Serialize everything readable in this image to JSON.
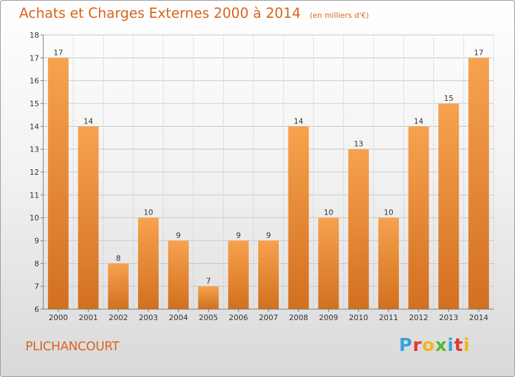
{
  "title": "Achats et Charges Externes 2000 à 2014",
  "subtitle": "(en milliers d'€)",
  "commune": "PLICHANCOURT",
  "brand": {
    "letters": [
      "P",
      "r",
      "o",
      "x",
      "i",
      "t",
      "i"
    ],
    "colors": [
      "#3aa0d8",
      "#e23a2c",
      "#f2b51c",
      "#5bb530",
      "#3aa0d8",
      "#e23a2c",
      "#f2b51c"
    ]
  },
  "colors": {
    "bar_top": "#f7a24e",
    "bar_bottom": "#d2701f",
    "title": "#d9641c",
    "grid": "#c8c8c8"
  },
  "chart_data": {
    "type": "bar",
    "categories": [
      "2000",
      "2001",
      "2002",
      "2003",
      "2004",
      "2005",
      "2006",
      "2007",
      "2008",
      "2009",
      "2010",
      "2011",
      "2012",
      "2013",
      "2014"
    ],
    "values": [
      17,
      14,
      8,
      10,
      9,
      7,
      9,
      9,
      14,
      10,
      13,
      10,
      14,
      15,
      17
    ],
    "title": "Achats et Charges Externes 2000 à 2014",
    "ylim": [
      6,
      18
    ],
    "yticks": [
      6,
      7,
      8,
      9,
      10,
      11,
      12,
      13,
      14,
      15,
      16,
      17,
      18
    ],
    "grid": true,
    "data_labels": true
  }
}
